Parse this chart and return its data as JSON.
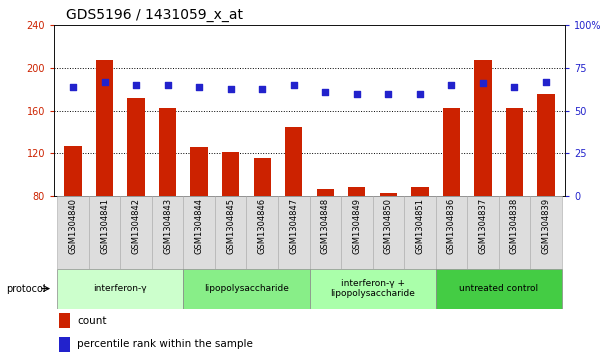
{
  "title": "GDS5196 / 1431059_x_at",
  "samples": [
    "GSM1304840",
    "GSM1304841",
    "GSM1304842",
    "GSM1304843",
    "GSM1304844",
    "GSM1304845",
    "GSM1304846",
    "GSM1304847",
    "GSM1304848",
    "GSM1304849",
    "GSM1304850",
    "GSM1304851",
    "GSM1304836",
    "GSM1304837",
    "GSM1304838",
    "GSM1304839"
  ],
  "count_values": [
    127,
    208,
    172,
    163,
    126,
    121,
    116,
    145,
    87,
    88,
    83,
    88,
    163,
    208,
    163,
    176
  ],
  "percentile_values": [
    64,
    67,
    65,
    65,
    64,
    63,
    63,
    65,
    61,
    60,
    60,
    60,
    65,
    66,
    64,
    67
  ],
  "groups": [
    {
      "label": "interferon-γ",
      "start": 0,
      "end": 3,
      "color": "#ccffcc"
    },
    {
      "label": "lipopolysaccharide",
      "start": 4,
      "end": 7,
      "color": "#88ee88"
    },
    {
      "label": "interferon-γ +\nlipopolysaccharide",
      "start": 8,
      "end": 11,
      "color": "#aaffaa"
    },
    {
      "label": "untreated control",
      "start": 12,
      "end": 15,
      "color": "#44cc44"
    }
  ],
  "ylim_left": [
    80,
    240
  ],
  "ylim_right": [
    0,
    100
  ],
  "yticks_left": [
    80,
    120,
    160,
    200,
    240
  ],
  "yticks_right": [
    0,
    25,
    50,
    75,
    100
  ],
  "bar_color": "#cc2200",
  "dot_color": "#2222cc",
  "bg_color": "#ffffff",
  "left_tick_color": "#cc2200",
  "right_tick_color": "#2222cc",
  "tick_label_bg": "#dddddd",
  "tick_label_edge": "#aaaaaa"
}
